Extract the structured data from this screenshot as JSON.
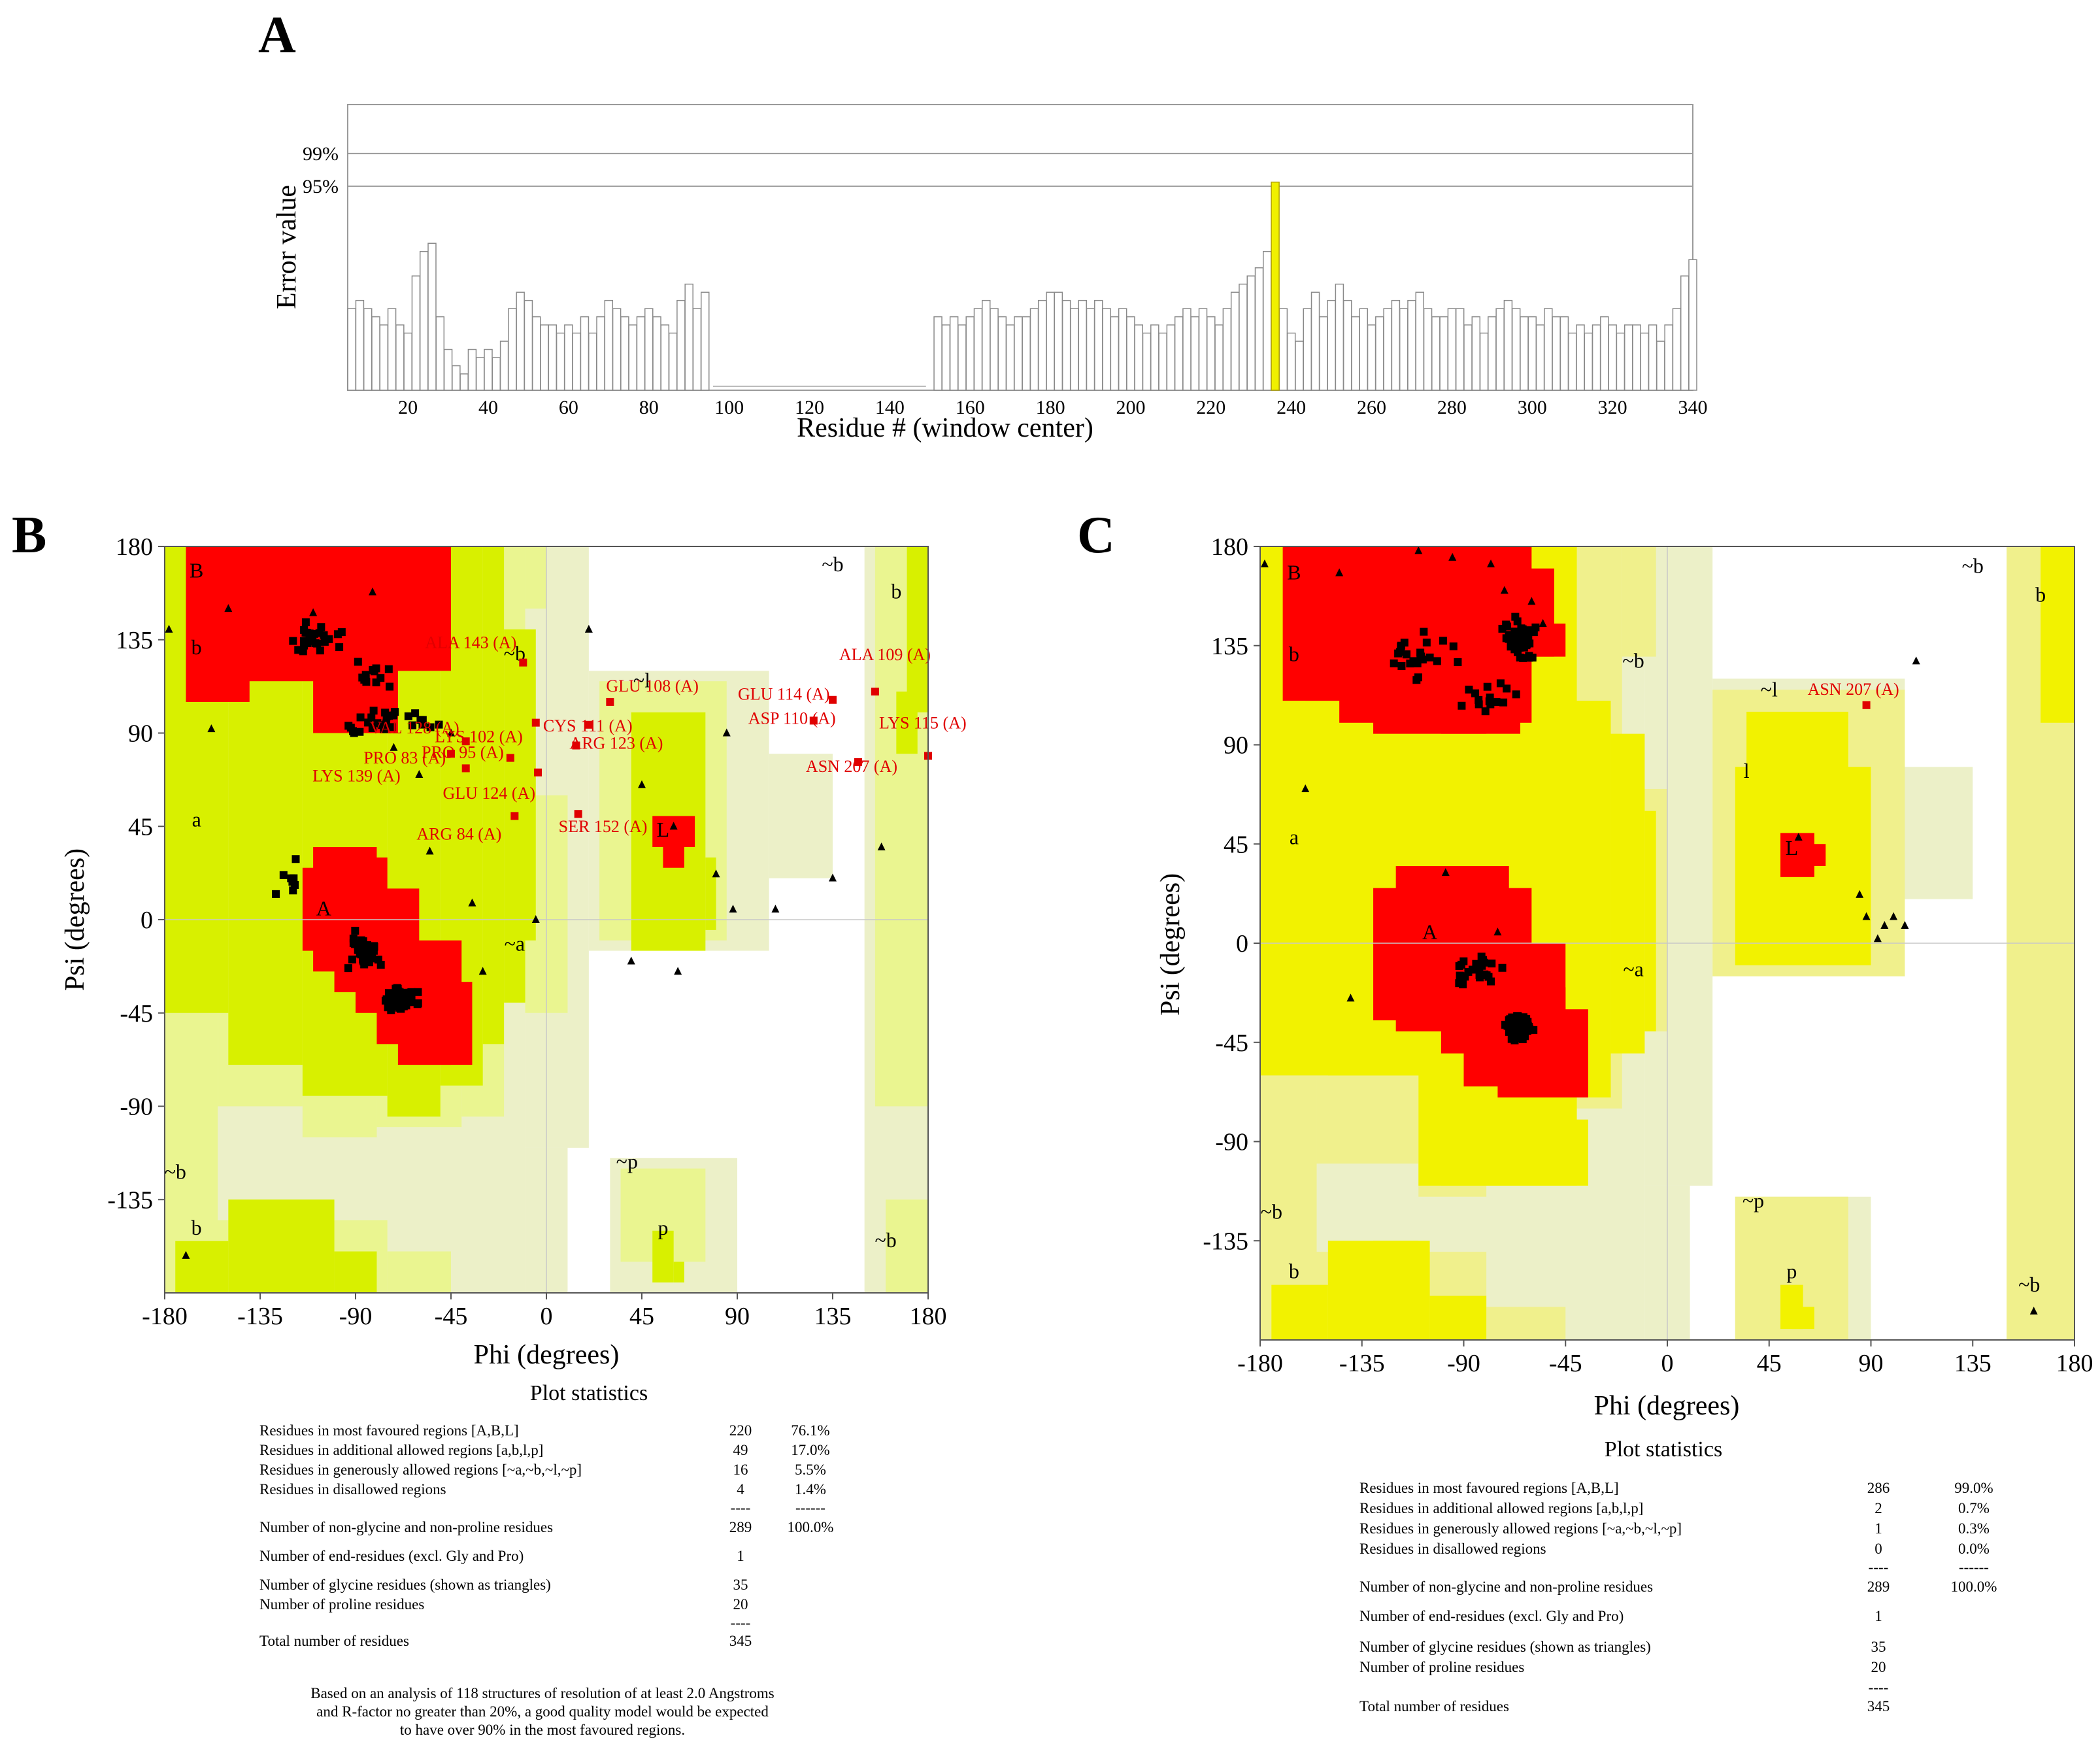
{
  "colors": {
    "core": "#ff0000",
    "allowed": "#f2f200",
    "generous": "#f0f08c",
    "allowed_left_B": "#d8f000",
    "generous_left_B": "#eaf590",
    "outer": "#ecf0c8",
    "grid": "#c8c8c8",
    "bar_highlight": "#f0f000",
    "point": "#000000",
    "outlier": "#e00000"
  },
  "panels": {
    "A": {
      "letter": "A",
      "ylabel": "Error value",
      "xlabel": "Residue # (window center)",
      "hlines": [
        {
          "label": "99%",
          "value": 0.99
        },
        {
          "label": "95%",
          "value": 0.95
        }
      ],
      "xticks": [
        "20",
        "40",
        "60",
        "80",
        "100",
        "120",
        "140",
        "160",
        "180",
        "200",
        "220",
        "240",
        "260",
        "280",
        "300",
        "320",
        "340"
      ]
    },
    "B": {
      "letter": "B",
      "xlabel": "Phi (degrees)",
      "ylabel": "Psi (degrees)",
      "xticks": [
        "-180",
        "-135",
        "-90",
        "-45",
        "0",
        "45",
        "90",
        "135",
        "180"
      ],
      "yticks": [
        "180",
        "135",
        "90",
        "45",
        "0",
        "-45",
        "-90",
        "-135"
      ],
      "stats_title": "Plot statistics",
      "footnote": [
        "Based on an analysis of 118 structures of resolution of at least 2.0 Angstroms",
        "and R-factor no greater than 20%, a good quality model would be expected",
        "to have over 90% in the most favoured regions."
      ]
    },
    "C": {
      "letter": "C",
      "xlabel": "Phi (degrees)",
      "ylabel": "Psi (degrees)",
      "xticks": [
        "-180",
        "-135",
        "-90",
        "-45",
        "0",
        "45",
        "90",
        "135",
        "180"
      ],
      "yticks": [
        "180",
        "135",
        "90",
        "45",
        "0",
        "-45",
        "-90",
        "-135"
      ],
      "stats_title": "Plot statistics"
    }
  },
  "region_labels": [
    "B",
    "b",
    "a",
    "A",
    "~b",
    "~b",
    "~a",
    "~l",
    "l",
    "L",
    "~p",
    "p",
    "~b",
    "b",
    "~b",
    "b"
  ],
  "chart_data": [
    {
      "type": "bar",
      "title": "",
      "xlabel": "Residue # (window center)",
      "ylabel": "Error value",
      "xlim": [
        5,
        340
      ],
      "thresholds": {
        "99%": 0.99,
        "95%": 0.95
      },
      "gap": [
        95,
        150
      ],
      "highlight": {
        "residue": 236,
        "value": 0.955
      },
      "bars": [
        {
          "x": 6,
          "y": 0.8
        },
        {
          "x": 8,
          "y": 0.81
        },
        {
          "x": 10,
          "y": 0.8
        },
        {
          "x": 12,
          "y": 0.79
        },
        {
          "x": 14,
          "y": 0.78
        },
        {
          "x": 16,
          "y": 0.8
        },
        {
          "x": 18,
          "y": 0.78
        },
        {
          "x": 20,
          "y": 0.77
        },
        {
          "x": 22,
          "y": 0.84
        },
        {
          "x": 24,
          "y": 0.87
        },
        {
          "x": 26,
          "y": 0.88
        },
        {
          "x": 28,
          "y": 0.79
        },
        {
          "x": 30,
          "y": 0.75
        },
        {
          "x": 32,
          "y": 0.73
        },
        {
          "x": 34,
          "y": 0.72
        },
        {
          "x": 36,
          "y": 0.75
        },
        {
          "x": 38,
          "y": 0.74
        },
        {
          "x": 40,
          "y": 0.75
        },
        {
          "x": 42,
          "y": 0.74
        },
        {
          "x": 44,
          "y": 0.76
        },
        {
          "x": 46,
          "y": 0.8
        },
        {
          "x": 48,
          "y": 0.82
        },
        {
          "x": 50,
          "y": 0.81
        },
        {
          "x": 52,
          "y": 0.79
        },
        {
          "x": 54,
          "y": 0.78
        },
        {
          "x": 56,
          "y": 0.78
        },
        {
          "x": 58,
          "y": 0.77
        },
        {
          "x": 60,
          "y": 0.78
        },
        {
          "x": 62,
          "y": 0.77
        },
        {
          "x": 64,
          "y": 0.79
        },
        {
          "x": 66,
          "y": 0.77
        },
        {
          "x": 68,
          "y": 0.79
        },
        {
          "x": 70,
          "y": 0.81
        },
        {
          "x": 72,
          "y": 0.8
        },
        {
          "x": 74,
          "y": 0.79
        },
        {
          "x": 76,
          "y": 0.78
        },
        {
          "x": 78,
          "y": 0.79
        },
        {
          "x": 80,
          "y": 0.8
        },
        {
          "x": 82,
          "y": 0.79
        },
        {
          "x": 84,
          "y": 0.78
        },
        {
          "x": 86,
          "y": 0.77
        },
        {
          "x": 88,
          "y": 0.81
        },
        {
          "x": 90,
          "y": 0.83
        },
        {
          "x": 92,
          "y": 0.8
        },
        {
          "x": 94,
          "y": 0.82
        },
        {
          "x": 152,
          "y": 0.79
        },
        {
          "x": 154,
          "y": 0.78
        },
        {
          "x": 156,
          "y": 0.79
        },
        {
          "x": 158,
          "y": 0.78
        },
        {
          "x": 160,
          "y": 0.79
        },
        {
          "x": 162,
          "y": 0.8
        },
        {
          "x": 164,
          "y": 0.81
        },
        {
          "x": 166,
          "y": 0.8
        },
        {
          "x": 168,
          "y": 0.79
        },
        {
          "x": 170,
          "y": 0.78
        },
        {
          "x": 172,
          "y": 0.79
        },
        {
          "x": 174,
          "y": 0.79
        },
        {
          "x": 176,
          "y": 0.8
        },
        {
          "x": 178,
          "y": 0.81
        },
        {
          "x": 180,
          "y": 0.82
        },
        {
          "x": 182,
          "y": 0.82
        },
        {
          "x": 184,
          "y": 0.81
        },
        {
          "x": 186,
          "y": 0.8
        },
        {
          "x": 188,
          "y": 0.81
        },
        {
          "x": 190,
          "y": 0.8
        },
        {
          "x": 192,
          "y": 0.81
        },
        {
          "x": 194,
          "y": 0.8
        },
        {
          "x": 196,
          "y": 0.79
        },
        {
          "x": 198,
          "y": 0.8
        },
        {
          "x": 200,
          "y": 0.79
        },
        {
          "x": 202,
          "y": 0.78
        },
        {
          "x": 204,
          "y": 0.77
        },
        {
          "x": 206,
          "y": 0.78
        },
        {
          "x": 208,
          "y": 0.77
        },
        {
          "x": 210,
          "y": 0.78
        },
        {
          "x": 212,
          "y": 0.79
        },
        {
          "x": 214,
          "y": 0.8
        },
        {
          "x": 216,
          "y": 0.79
        },
        {
          "x": 218,
          "y": 0.8
        },
        {
          "x": 220,
          "y": 0.79
        },
        {
          "x": 222,
          "y": 0.78
        },
        {
          "x": 224,
          "y": 0.8
        },
        {
          "x": 226,
          "y": 0.82
        },
        {
          "x": 228,
          "y": 0.83
        },
        {
          "x": 230,
          "y": 0.84
        },
        {
          "x": 232,
          "y": 0.85
        },
        {
          "x": 234,
          "y": 0.87
        },
        {
          "x": 238,
          "y": 0.8
        },
        {
          "x": 240,
          "y": 0.77
        },
        {
          "x": 242,
          "y": 0.76
        },
        {
          "x": 244,
          "y": 0.8
        },
        {
          "x": 246,
          "y": 0.82
        },
        {
          "x": 248,
          "y": 0.79
        },
        {
          "x": 250,
          "y": 0.81
        },
        {
          "x": 252,
          "y": 0.83
        },
        {
          "x": 254,
          "y": 0.81
        },
        {
          "x": 256,
          "y": 0.79
        },
        {
          "x": 258,
          "y": 0.8
        },
        {
          "x": 260,
          "y": 0.78
        },
        {
          "x": 262,
          "y": 0.79
        },
        {
          "x": 264,
          "y": 0.8
        },
        {
          "x": 266,
          "y": 0.81
        },
        {
          "x": 268,
          "y": 0.8
        },
        {
          "x": 270,
          "y": 0.81
        },
        {
          "x": 272,
          "y": 0.82
        },
        {
          "x": 274,
          "y": 0.8
        },
        {
          "x": 276,
          "y": 0.79
        },
        {
          "x": 278,
          "y": 0.79
        },
        {
          "x": 280,
          "y": 0.8
        },
        {
          "x": 282,
          "y": 0.8
        },
        {
          "x": 284,
          "y": 0.78
        },
        {
          "x": 286,
          "y": 0.79
        },
        {
          "x": 288,
          "y": 0.77
        },
        {
          "x": 290,
          "y": 0.79
        },
        {
          "x": 292,
          "y": 0.8
        },
        {
          "x": 294,
          "y": 0.81
        },
        {
          "x": 296,
          "y": 0.8
        },
        {
          "x": 298,
          "y": 0.79
        },
        {
          "x": 300,
          "y": 0.79
        },
        {
          "x": 302,
          "y": 0.78
        },
        {
          "x": 304,
          "y": 0.8
        },
        {
          "x": 306,
          "y": 0.79
        },
        {
          "x": 308,
          "y": 0.79
        },
        {
          "x": 310,
          "y": 0.77
        },
        {
          "x": 312,
          "y": 0.78
        },
        {
          "x": 314,
          "y": 0.77
        },
        {
          "x": 316,
          "y": 0.78
        },
        {
          "x": 318,
          "y": 0.79
        },
        {
          "x": 320,
          "y": 0.78
        },
        {
          "x": 322,
          "y": 0.77
        },
        {
          "x": 324,
          "y": 0.78
        },
        {
          "x": 326,
          "y": 0.78
        },
        {
          "x": 328,
          "y": 0.77
        },
        {
          "x": 330,
          "y": 0.78
        },
        {
          "x": 332,
          "y": 0.76
        },
        {
          "x": 334,
          "y": 0.78
        },
        {
          "x": 336,
          "y": 0.8
        },
        {
          "x": 338,
          "y": 0.84
        },
        {
          "x": 340,
          "y": 0.86
        }
      ]
    },
    {
      "type": "scatter",
      "title": "",
      "xlabel": "Phi (degrees)",
      "ylabel": "Psi (degrees)",
      "xlim": [
        -180,
        180
      ],
      "ylim": [
        -180,
        180
      ],
      "outliers": [
        {
          "label": "ALA 143 (A)",
          "phi": -11,
          "psi": 124
        },
        {
          "label": "LYS 102 (A)",
          "phi": -5,
          "psi": 95
        },
        {
          "label": "VAL 128 (A)",
          "phi": -38,
          "psi": 86
        },
        {
          "label": "PRO 83 (A)",
          "phi": -45,
          "psi": 80
        },
        {
          "label": "PRO 95 (A)",
          "phi": -17,
          "psi": 78
        },
        {
          "label": "LYS 139 (A)",
          "phi": -38,
          "psi": 73
        },
        {
          "label": "GLU 124 (A)",
          "phi": -4,
          "psi": 71
        },
        {
          "label": "ARG 84 (A)",
          "phi": -15,
          "psi": 50
        },
        {
          "label": "GLU 108 (A)",
          "phi": 30,
          "psi": 105
        },
        {
          "label": "CYS 111 (A)",
          "phi": 20,
          "psi": 94
        },
        {
          "label": "ARG 123 (A)",
          "phi": 14,
          "psi": 84
        },
        {
          "label": "SER 152 (A)",
          "phi": 15,
          "psi": 51
        },
        {
          "label": "GLU 114 (A)",
          "phi": 135,
          "psi": 106
        },
        {
          "label": "ASP 110 (A)",
          "phi": 126,
          "psi": 96
        },
        {
          "label": "ALA 109 (A)",
          "phi": 155,
          "psi": 110
        },
        {
          "label": "LYS 115 (A)",
          "phi": 180,
          "psi": 79
        },
        {
          "label": "ASN 207 (A)",
          "phi": 147,
          "psi": 76
        }
      ],
      "statistics": {
        "rows": [
          {
            "label": "Residues in most favoured regions  [A,B,L]",
            "count": "220",
            "pct": "76.1%"
          },
          {
            "label": "Residues in additional allowed regions  [a,b,l,p]",
            "count": "49",
            "pct": "17.0%"
          },
          {
            "label": "Residues in generously allowed regions  [~a,~b,~l,~p]",
            "count": "16",
            "pct": "5.5%"
          },
          {
            "label": "Residues in disallowed regions",
            "count": "4",
            "pct": "1.4%"
          },
          {
            "label": "",
            "count": "----",
            "pct": "------"
          },
          {
            "label": "Number of non-glycine and non-proline residues",
            "count": "289",
            "pct": "100.0%"
          },
          {
            "label": "Number of end-residues (excl. Gly and Pro)",
            "count": "1",
            "pct": ""
          },
          {
            "label": "Number of glycine residues (shown as triangles)",
            "count": "35",
            "pct": ""
          },
          {
            "label": "Number of proline residues",
            "count": "20",
            "pct": ""
          },
          {
            "label": "",
            "count": "----",
            "pct": ""
          },
          {
            "label": "Total number of residues",
            "count": "345",
            "pct": ""
          }
        ]
      }
    },
    {
      "type": "scatter",
      "title": "",
      "xlabel": "Phi (degrees)",
      "ylabel": "Psi (degrees)",
      "xlim": [
        -180,
        180
      ],
      "ylim": [
        -180,
        180
      ],
      "outliers": [
        {
          "label": "ASN 207 (A)",
          "phi": 88,
          "psi": 108
        }
      ],
      "statistics": {
        "rows": [
          {
            "label": "Residues in most favoured regions  [A,B,L]",
            "count": "286",
            "pct": "99.0%"
          },
          {
            "label": "Residues in additional allowed regions  [a,b,l,p]",
            "count": "2",
            "pct": "0.7%"
          },
          {
            "label": "Residues in generously allowed regions  [~a,~b,~l,~p]",
            "count": "1",
            "pct": "0.3%"
          },
          {
            "label": "Residues in disallowed regions",
            "count": "0",
            "pct": "0.0%"
          },
          {
            "label": "",
            "count": "----",
            "pct": "------"
          },
          {
            "label": "Number of non-glycine and non-proline residues",
            "count": "289",
            "pct": "100.0%"
          },
          {
            "label": "Number of end-residues (excl. Gly and Pro)",
            "count": "1",
            "pct": ""
          },
          {
            "label": "Number of glycine residues (shown as triangles)",
            "count": "35",
            "pct": ""
          },
          {
            "label": "Number of proline residues",
            "count": "20",
            "pct": ""
          },
          {
            "label": "",
            "count": "----",
            "pct": ""
          },
          {
            "label": "Total number of residues",
            "count": "345",
            "pct": ""
          }
        ]
      }
    }
  ]
}
